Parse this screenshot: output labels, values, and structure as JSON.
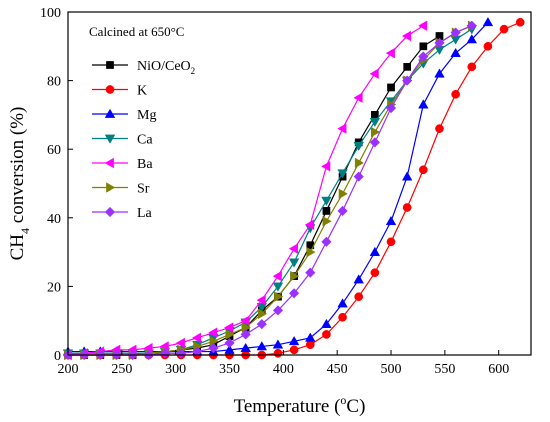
{
  "chart_data": {
    "type": "line",
    "title": "",
    "annotation": "Calcined at 650°C",
    "xlabel": {
      "prefix": "Temperature (",
      "sup": "o",
      "suffix": "C)"
    },
    "ylabel": {
      "base": "CH",
      "sub": "4",
      "rest": " conversion (%)"
    },
    "xlim": [
      200,
      630
    ],
    "ylim": [
      0,
      100
    ],
    "xticks": [
      200,
      250,
      300,
      350,
      400,
      450,
      500,
      550,
      600
    ],
    "yticks": [
      0,
      20,
      40,
      60,
      80,
      100
    ],
    "grid": false,
    "legend": "top-left",
    "series": [
      {
        "name": "NiO/CeO",
        "name_sub": "2",
        "color": "#000000",
        "marker": "square",
        "x": [
          200,
          215,
          230,
          245,
          260,
          275,
          290,
          305,
          320,
          335,
          350,
          365,
          380,
          395,
          410,
          425,
          440,
          455,
          470,
          485,
          500,
          515,
          530,
          545
        ],
        "y": [
          0,
          0,
          0,
          0,
          0,
          0.5,
          0.8,
          1.5,
          2,
          3,
          5.5,
          8,
          13,
          17,
          23,
          32,
          42,
          52,
          62,
          70,
          78,
          84,
          90,
          93
        ]
      },
      {
        "name": "K",
        "color": "#ff0000",
        "marker": "circle",
        "x": [
          200,
          215,
          230,
          245,
          260,
          275,
          290,
          305,
          320,
          335,
          350,
          365,
          380,
          395,
          410,
          425,
          440,
          455,
          470,
          485,
          500,
          515,
          530,
          545,
          560,
          575,
          590,
          605,
          620
        ],
        "y": [
          0,
          0,
          0,
          0,
          0,
          0,
          0,
          0,
          0,
          0,
          0,
          0,
          0,
          0.5,
          1.5,
          3,
          6,
          11,
          17,
          24,
          33,
          43,
          54,
          66,
          76,
          84,
          90,
          95,
          97
        ]
      },
      {
        "name": "Mg",
        "color": "#0000ff",
        "marker": "triangle-up",
        "x": [
          200,
          215,
          230,
          245,
          260,
          275,
          290,
          305,
          320,
          335,
          350,
          365,
          380,
          395,
          410,
          425,
          440,
          455,
          470,
          485,
          500,
          515,
          530,
          545,
          560,
          575,
          590
        ],
        "y": [
          1,
          1,
          1,
          1,
          1,
          1,
          1,
          1,
          1,
          1,
          1.5,
          2,
          2.5,
          3,
          4,
          5,
          9,
          15,
          22,
          30,
          39,
          52,
          73,
          82,
          88,
          92,
          97
        ]
      },
      {
        "name": "Ca",
        "color": "#008080",
        "marker": "triangle-down",
        "x": [
          200,
          215,
          230,
          245,
          260,
          275,
          290,
          305,
          320,
          335,
          350,
          365,
          380,
          395,
          410,
          425,
          440,
          455,
          470,
          485,
          500,
          515,
          530,
          545,
          560,
          575
        ],
        "y": [
          0.5,
          0.5,
          0.5,
          0.5,
          0.5,
          0.5,
          1,
          1.5,
          3,
          5,
          7,
          9.5,
          14,
          20,
          27,
          37,
          45,
          53,
          61,
          68,
          74,
          80,
          85,
          89,
          92,
          95
        ]
      },
      {
        "name": "Ba",
        "color": "#ff00ff",
        "marker": "triangle-left",
        "x": [
          200,
          215,
          230,
          245,
          260,
          275,
          290,
          305,
          320,
          335,
          350,
          365,
          380,
          395,
          410,
          425,
          440,
          455,
          470,
          485,
          500,
          515,
          530
        ],
        "y": [
          0,
          0.5,
          1,
          1.5,
          1.5,
          2,
          2.5,
          3.5,
          5,
          6.5,
          8,
          10,
          16,
          23,
          31,
          38,
          55,
          66,
          75,
          82,
          88,
          93,
          96
        ]
      },
      {
        "name": "Sr",
        "color": "#808000",
        "marker": "triangle-right",
        "x": [
          200,
          215,
          230,
          245,
          260,
          275,
          290,
          305,
          320,
          335,
          350,
          365,
          380,
          395,
          410,
          425,
          440,
          455,
          470,
          485,
          500,
          515,
          530,
          545,
          560,
          575
        ],
        "y": [
          0,
          0,
          0,
          0,
          0,
          0.5,
          1,
          1.5,
          2.5,
          4,
          6,
          8,
          12,
          17,
          23,
          30,
          39,
          47,
          56,
          65,
          73,
          80,
          86,
          91,
          94,
          96
        ]
      },
      {
        "name": "La",
        "color": "#9b30ff",
        "marker": "diamond",
        "x": [
          200,
          215,
          230,
          245,
          260,
          275,
          290,
          305,
          320,
          335,
          350,
          365,
          380,
          395,
          410,
          425,
          440,
          455,
          470,
          485,
          500,
          515,
          530,
          545,
          560,
          575
        ],
        "y": [
          0,
          0,
          0,
          0,
          0,
          0,
          0.5,
          0.5,
          1,
          2,
          3.5,
          6,
          9,
          13,
          18,
          24,
          33,
          42,
          52,
          62,
          72,
          80,
          87,
          91,
          94,
          96
        ]
      }
    ]
  }
}
